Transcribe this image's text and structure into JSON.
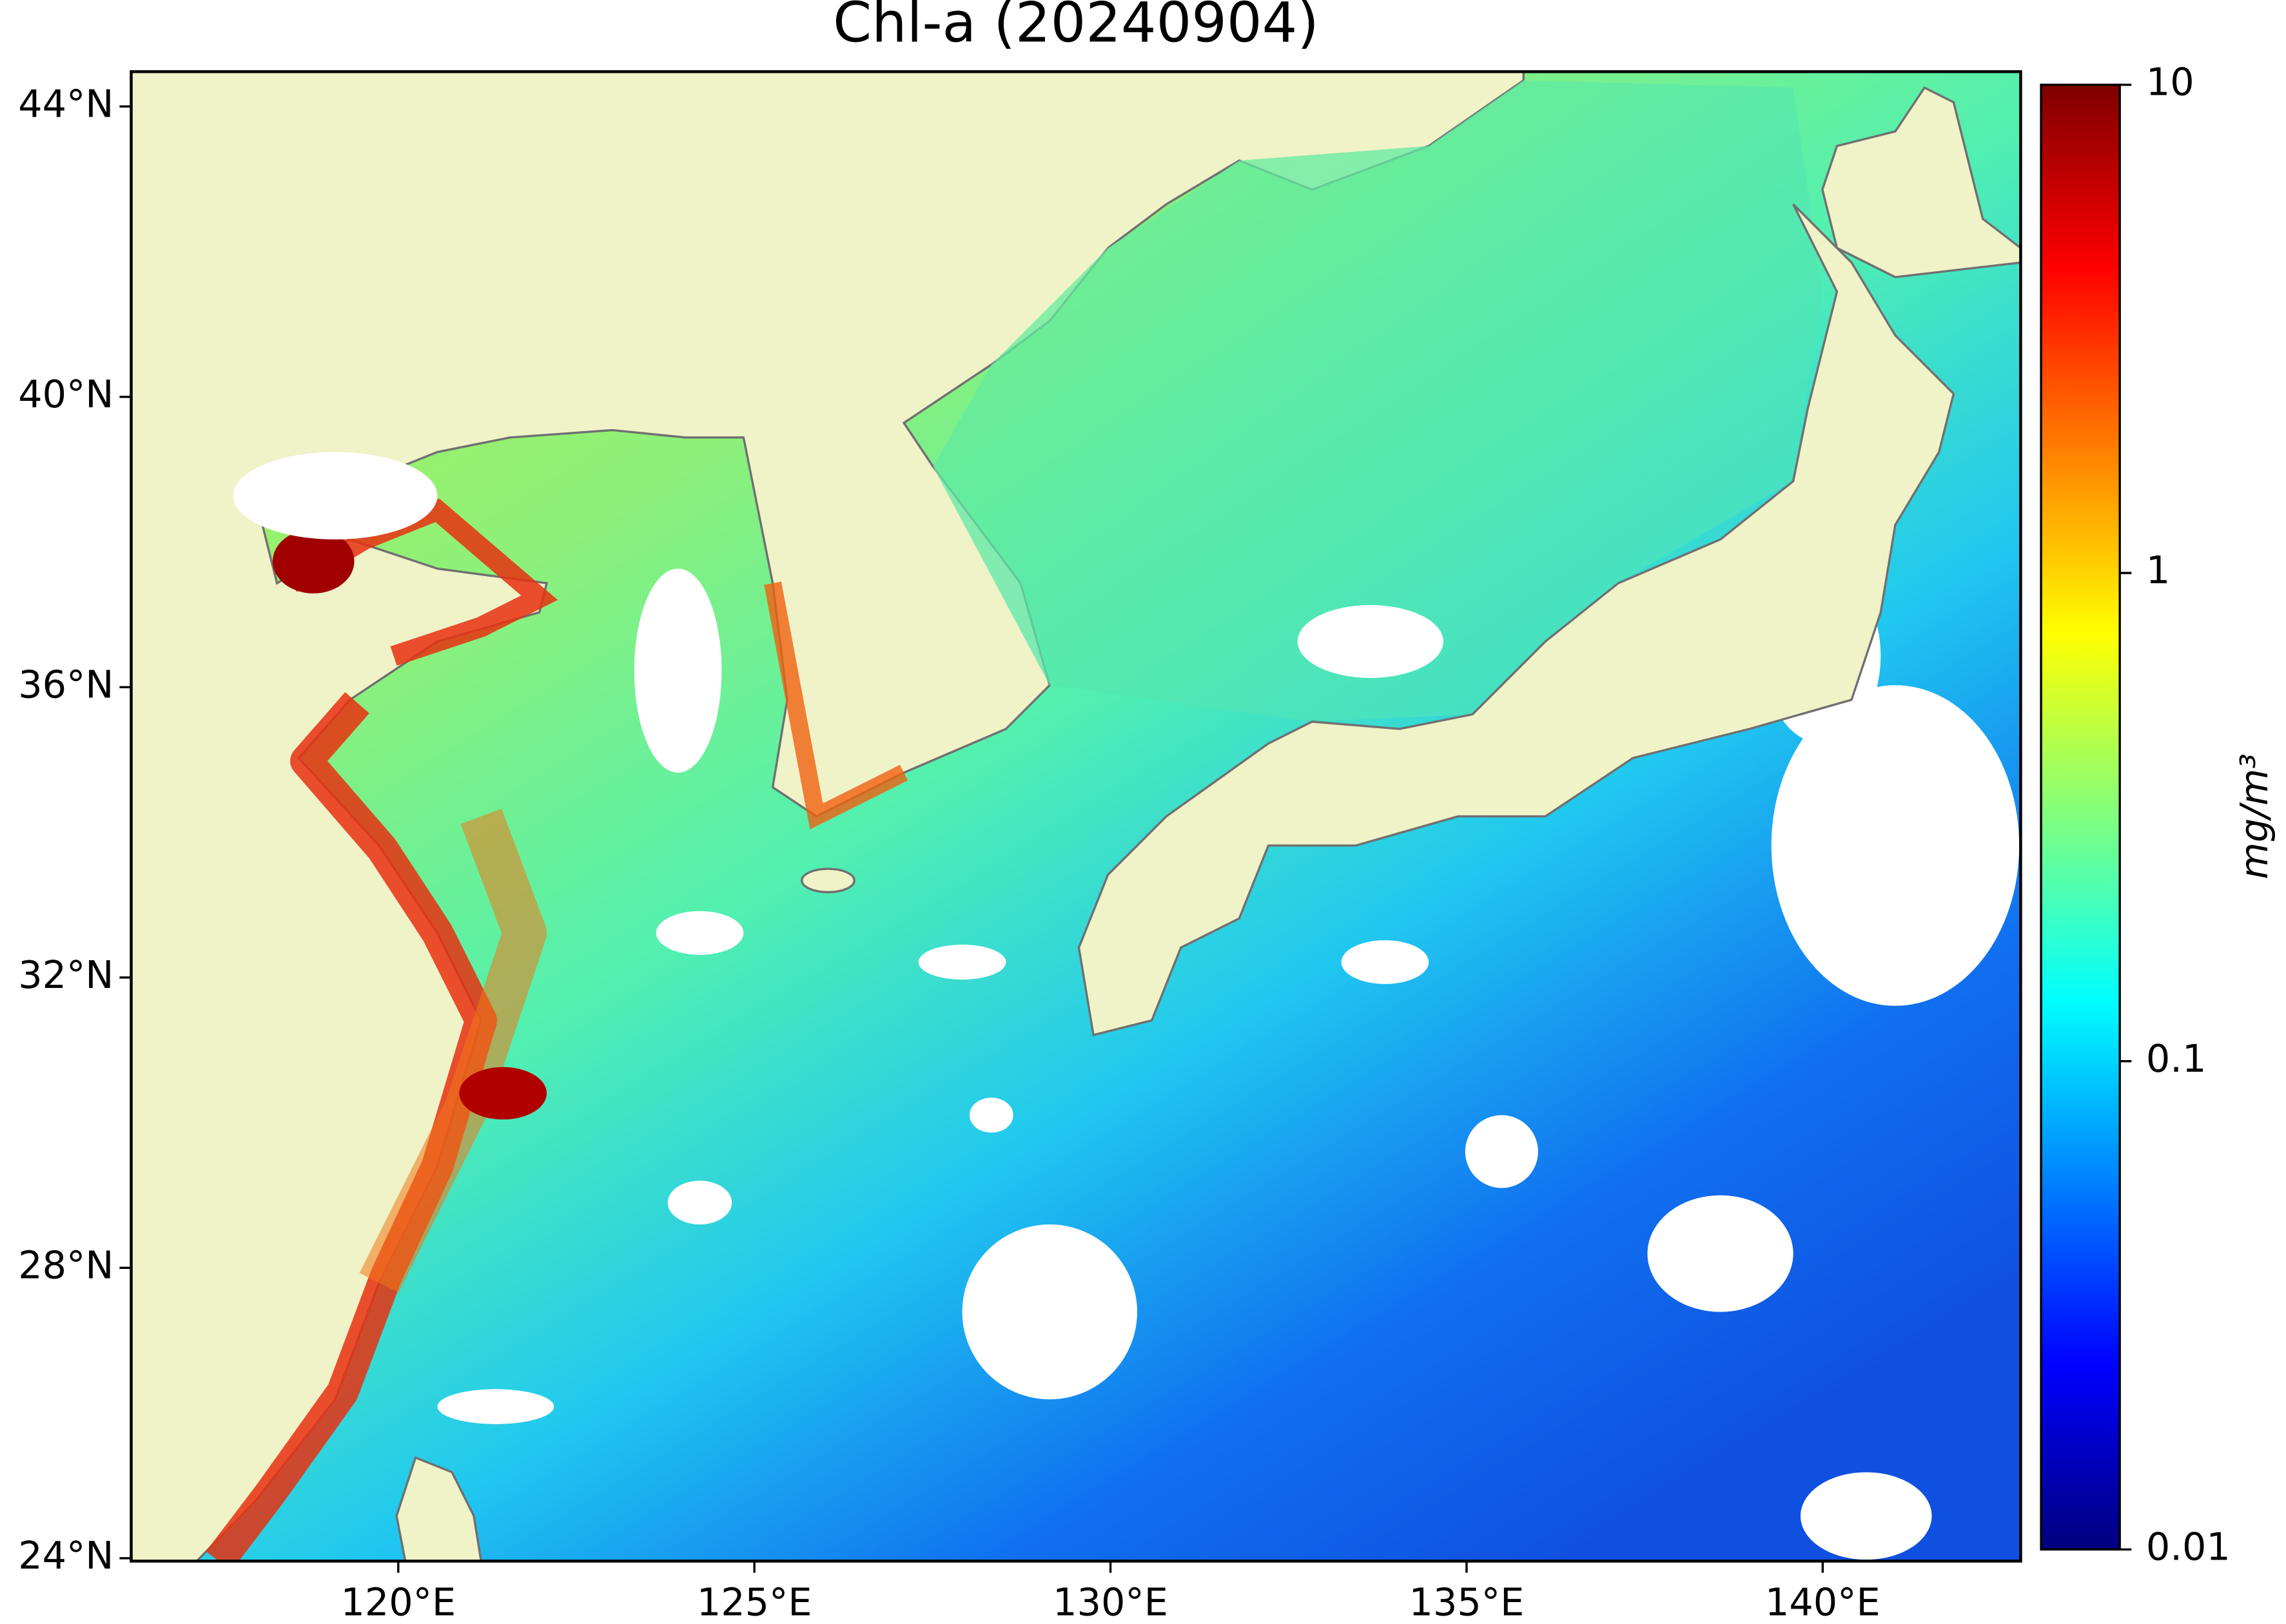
{
  "title": "Chl-a (20240904)",
  "map": {
    "xlim": [
      116.25,
      142.78
    ],
    "ylim": [
      23.96,
      44.48
    ],
    "xticks": [
      {
        "value": 120,
        "label": "120°E"
      },
      {
        "value": 125,
        "label": "125°E"
      },
      {
        "value": 130,
        "label": "130°E"
      },
      {
        "value": 135,
        "label": "135°E"
      },
      {
        "value": 140,
        "label": "140°E"
      }
    ],
    "yticks": [
      {
        "value": 24,
        "label": "24°N"
      },
      {
        "value": 28,
        "label": "28°N"
      },
      {
        "value": 32,
        "label": "32°N"
      },
      {
        "value": 36,
        "label": "36°N"
      },
      {
        "value": 40,
        "label": "40°N"
      },
      {
        "value": 44,
        "label": "44°N"
      }
    ]
  },
  "colorbar": {
    "scale": "log",
    "lim": [
      0.01,
      10
    ],
    "ticks": [
      0.01,
      0.1,
      1,
      10
    ],
    "label": "mg/m³"
  }
}
